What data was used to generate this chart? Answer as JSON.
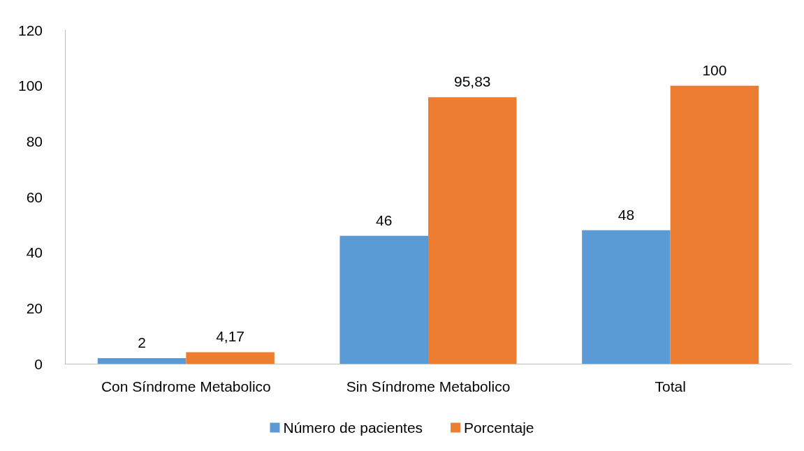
{
  "chart_data": {
    "type": "bar",
    "categories": [
      "Con Síndrome Metabolico",
      "Sin Síndrome Metabolico",
      "Total"
    ],
    "series": [
      {
        "name": "Número de pacientes",
        "color": "#5b9bd5",
        "values": [
          2,
          46,
          48
        ],
        "value_labels": [
          "2",
          "46",
          "48"
        ]
      },
      {
        "name": "Porcentaje",
        "color": "#ed7d31",
        "values": [
          4.17,
          95.83,
          100
        ],
        "value_labels": [
          "4,17",
          "95,83",
          "100"
        ]
      }
    ],
    "ylim": [
      0,
      120
    ],
    "yticks": [
      0,
      20,
      40,
      60,
      80,
      100,
      120
    ],
    "grid": false,
    "legend": "bottom"
  }
}
